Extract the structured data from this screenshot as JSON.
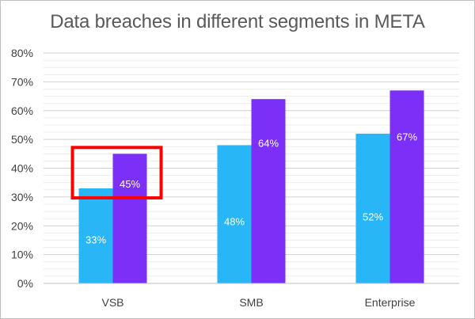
{
  "chart_data": {
    "type": "bar",
    "title": "Data breaches in different segments in META",
    "categories": [
      "VSB",
      "SMB",
      "Enterprise"
    ],
    "series": [
      {
        "values": [
          33,
          48,
          52
        ],
        "color": "#29b6f6"
      },
      {
        "values": [
          45,
          64,
          67
        ],
        "color": "#7b2ff7"
      }
    ],
    "data_labels": [
      [
        "33%",
        "48%",
        "52%"
      ],
      [
        "45%",
        "64%",
        "67%"
      ]
    ],
    "y_ticks": [
      "0%",
      "10%",
      "20%",
      "30%",
      "40%",
      "50%",
      "60%",
      "70%",
      "80%"
    ],
    "ylim": [
      0,
      80
    ],
    "grid": true,
    "xlabel": "",
    "ylabel": "",
    "highlight": {
      "category": "VSB",
      "color": "#ff0000"
    }
  }
}
